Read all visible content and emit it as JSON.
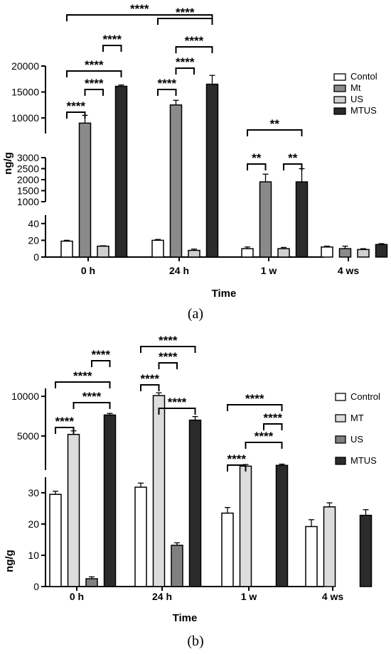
{
  "chart_data": [
    {
      "type": "bar",
      "panel_label": "(a)",
      "xlabel": "Time",
      "ylabel": "ng/g",
      "categories": [
        "0 h",
        "24 h",
        "1 w",
        "4 ws"
      ],
      "series": [
        {
          "name": "Contol",
          "color": "#ffffff",
          "values": [
            19,
            20,
            10,
            12
          ],
          "errors": [
            1,
            1,
            2,
            1
          ]
        },
        {
          "name": "Mt",
          "color": "#8a8a8a",
          "values": [
            9000,
            12500,
            1900,
            10
          ],
          "errors": [
            1500,
            900,
            350,
            3
          ]
        },
        {
          "name": "US",
          "color": "#d0d0d0",
          "values": [
            13,
            8,
            10,
            9
          ],
          "errors": [
            0.5,
            1.5,
            1.5,
            1
          ]
        },
        {
          "name": "MTUS",
          "color": "#2b2b2b",
          "values": [
            16100,
            16500,
            1900,
            15
          ],
          "errors": [
            250,
            1700,
            600,
            1
          ]
        }
      ],
      "y_segments": [
        {
          "range": [
            0,
            50
          ],
          "ticks": [
            "0",
            "20",
            "40"
          ]
        },
        {
          "range": [
            1000,
            3000
          ],
          "ticks": [
            "1000",
            "1500",
            "2000",
            "2500",
            "3000"
          ]
        },
        {
          "range": [
            7000,
            20000
          ],
          "ticks": [
            "10000",
            "15000",
            "20000"
          ]
        }
      ],
      "significance": [
        {
          "from": [
            0,
            0
          ],
          "to": [
            0,
            1
          ],
          "label": "****"
        },
        {
          "from": [
            0,
            1
          ],
          "to": [
            0,
            2
          ],
          "label": "****"
        },
        {
          "from": [
            0,
            0
          ],
          "to": [
            0,
            3
          ],
          "label": "****"
        },
        {
          "from": [
            0,
            2
          ],
          "to": [
            0,
            3
          ],
          "label": "****"
        },
        {
          "from": [
            0,
            0
          ],
          "to": [
            1,
            3
          ],
          "label": "****"
        },
        {
          "from": [
            1,
            0
          ],
          "to": [
            1,
            1
          ],
          "label": "****"
        },
        {
          "from": [
            1,
            1
          ],
          "to": [
            1,
            2
          ],
          "label": "****"
        },
        {
          "from": [
            1,
            1
          ],
          "to": [
            1,
            3
          ],
          "label": "****"
        },
        {
          "from": [
            1,
            0
          ],
          "to": [
            1,
            3
          ],
          "label": "****"
        },
        {
          "from": [
            2,
            0
          ],
          "to": [
            2,
            1
          ],
          "label": "**"
        },
        {
          "from": [
            2,
            2
          ],
          "to": [
            2,
            3
          ],
          "label": "**"
        },
        {
          "from": [
            2,
            0
          ],
          "to": [
            2,
            3
          ],
          "label": "**"
        }
      ]
    },
    {
      "type": "bar",
      "panel_label": "(b)",
      "xlabel": "Time",
      "ylabel": "ng/g",
      "categories": [
        "0 h",
        "24 h",
        "1 w",
        "4 ws"
      ],
      "series": [
        {
          "name": "Control",
          "color": "#ffffff",
          "values": [
            29.5,
            31.8,
            23.5,
            19.2
          ],
          "errors": [
            1,
            1.3,
            1.8,
            2.2
          ]
        },
        {
          "name": "MT",
          "color": "#dcdcdc",
          "values": [
            5200,
            10100,
            1200,
            25.5
          ],
          "errors": [
            450,
            350,
            200,
            1.3
          ]
        },
        {
          "name": "US",
          "color": "#808080",
          "values": [
            2.5,
            13.2,
            0,
            0
          ],
          "errors": [
            0.6,
            0.8,
            0,
            0
          ]
        },
        {
          "name": "MTUS",
          "color": "#2b2b2b",
          "values": [
            7650,
            7000,
            1300,
            22.8
          ],
          "errors": [
            200,
            450,
            150,
            1.8
          ]
        }
      ],
      "y_segments": [
        {
          "range": [
            0,
            35
          ],
          "ticks": [
            "0",
            "10",
            "20",
            "30"
          ]
        },
        {
          "range": [
            700,
            11000
          ],
          "ticks": [
            "5000",
            "10000"
          ]
        }
      ],
      "significance": [
        {
          "from": [
            0,
            0
          ],
          "to": [
            0,
            1
          ],
          "label": "****"
        },
        {
          "from": [
            0,
            1
          ],
          "to": [
            0,
            3
          ],
          "label": "****"
        },
        {
          "from": [
            0,
            0
          ],
          "to": [
            0,
            3
          ],
          "label": "****"
        },
        {
          "from": [
            0,
            2
          ],
          "to": [
            0,
            3
          ],
          "label": "****"
        },
        {
          "from": [
            1,
            0
          ],
          "to": [
            1,
            1
          ],
          "label": "****"
        },
        {
          "from": [
            1,
            1
          ],
          "to": [
            1,
            3
          ],
          "label": "****"
        },
        {
          "from": [
            1,
            1
          ],
          "to": [
            1,
            2
          ],
          "label": "****"
        },
        {
          "from": [
            1,
            0
          ],
          "to": [
            1,
            3
          ],
          "label": "****"
        },
        {
          "from": [
            2,
            0
          ],
          "to": [
            2,
            1
          ],
          "label": "****"
        },
        {
          "from": [
            2,
            1
          ],
          "to": [
            2,
            3
          ],
          "label": "****"
        },
        {
          "from": [
            2,
            2
          ],
          "to": [
            2,
            3
          ],
          "label": "****"
        },
        {
          "from": [
            2,
            0
          ],
          "to": [
            2,
            3
          ],
          "label": "****"
        }
      ]
    }
  ]
}
